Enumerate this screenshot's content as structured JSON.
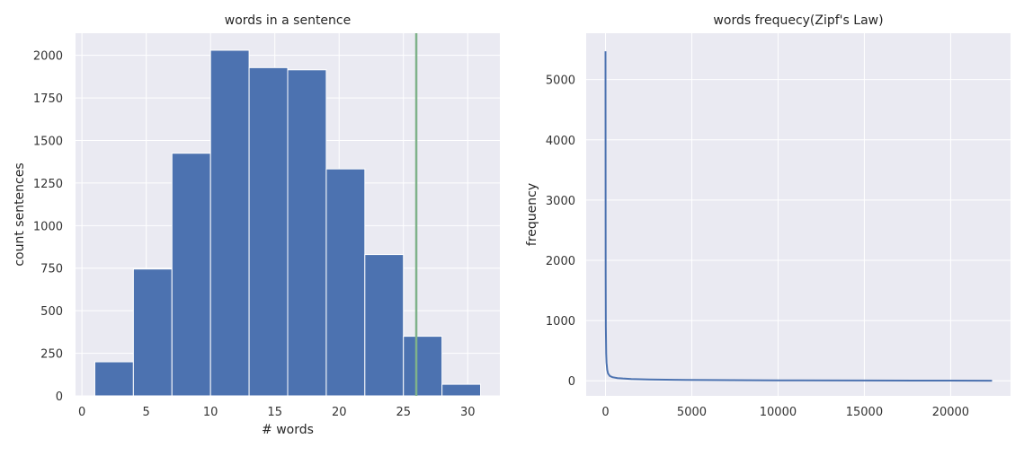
{
  "chart_data": [
    {
      "type": "bar",
      "title": "words in a sentence",
      "xlabel": "# words",
      "ylabel": "count sentences",
      "xlim": [
        -0.5,
        32.5
      ],
      "ylim": [
        0,
        2130
      ],
      "xticks": [
        0,
        5,
        10,
        15,
        20,
        25,
        30
      ],
      "yticks": [
        0,
        250,
        500,
        750,
        1000,
        1250,
        1500,
        1750,
        2000
      ],
      "grid": true,
      "bins": [
        {
          "x0": 1,
          "x1": 4,
          "count": 200
        },
        {
          "x0": 4,
          "x1": 7,
          "count": 745
        },
        {
          "x0": 7,
          "x1": 10,
          "count": 1425
        },
        {
          "x0": 10,
          "x1": 13,
          "count": 2030
        },
        {
          "x0": 13,
          "x1": 16,
          "count": 1928
        },
        {
          "x0": 16,
          "x1": 19,
          "count": 1915
        },
        {
          "x0": 19,
          "x1": 22,
          "count": 1333
        },
        {
          "x0": 22,
          "x1": 25,
          "count": 830
        },
        {
          "x0": 25,
          "x1": 28,
          "count": 350
        },
        {
          "x0": 28,
          "x1": 31,
          "count": 68
        }
      ],
      "vline": {
        "x": 26,
        "color": "#7fb28a"
      },
      "bar_color": "#4c72b0"
    },
    {
      "type": "line",
      "title": "words frequecy(Zipf's Law)",
      "xlabel": "",
      "ylabel": "frequency",
      "xlim": [
        -1120,
        23470
      ],
      "ylim": [
        -250,
        5770
      ],
      "xticks": [
        0,
        5000,
        10000,
        15000,
        20000
      ],
      "yticks": [
        0,
        1000,
        2000,
        3000,
        4000,
        5000
      ],
      "grid": true,
      "line_color": "#4c72b0",
      "series": [
        {
          "x": [
            0,
            10,
            20,
            40,
            60,
            100,
            150,
            250,
            400,
            700,
            1000,
            1500,
            2500,
            4000,
            6000,
            10000,
            15000,
            20000,
            22400
          ],
          "values": [
            5470,
            1800,
            900,
            450,
            300,
            180,
            120,
            80,
            60,
            45,
            38,
            30,
            22,
            16,
            12,
            8,
            5,
            3,
            1
          ]
        }
      ]
    }
  ]
}
